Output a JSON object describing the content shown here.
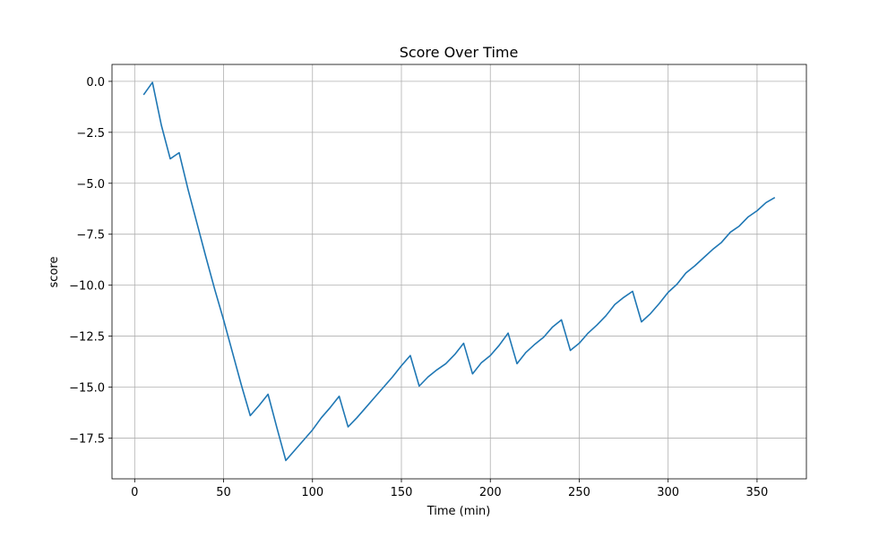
{
  "chart_data": {
    "type": "line",
    "title": "Score Over Time",
    "x_label": "Time (min)",
    "y_label": "score",
    "x": [
      5,
      10,
      15,
      20,
      25,
      30,
      35,
      40,
      45,
      50,
      55,
      60,
      65,
      70,
      75,
      80,
      85,
      90,
      95,
      100,
      105,
      110,
      115,
      120,
      125,
      130,
      135,
      140,
      145,
      150,
      155,
      160,
      165,
      170,
      175,
      180,
      185,
      190,
      195,
      200,
      205,
      210,
      215,
      220,
      225,
      230,
      235,
      240,
      245,
      250,
      255,
      260,
      265,
      270,
      275,
      280,
      285,
      290,
      295,
      300,
      305,
      310,
      315,
      320,
      325,
      330,
      335,
      340,
      345,
      350,
      355,
      360
    ],
    "series": [
      {
        "name": "score",
        "color": "#1f77b4",
        "values": [
          -0.66,
          -0.05,
          -2.15,
          -3.8,
          -3.5,
          -5.3,
          -6.95,
          -8.6,
          -10.2,
          -11.7,
          -13.3,
          -14.9,
          -16.4,
          -15.9,
          -15.35,
          -17.0,
          -18.6,
          -18.1,
          -17.6,
          -17.1,
          -16.5,
          -16.0,
          -15.45,
          -16.95,
          -16.5,
          -16.0,
          -15.5,
          -15.0,
          -14.5,
          -13.95,
          -13.45,
          -14.95,
          -14.5,
          -14.15,
          -13.85,
          -13.4,
          -12.85,
          -14.35,
          -13.8,
          -13.45,
          -12.95,
          -12.35,
          -13.85,
          -13.3,
          -12.9,
          -12.55,
          -12.05,
          -11.7,
          -13.2,
          -12.85,
          -12.35,
          -11.95,
          -11.5,
          -10.95,
          -10.6,
          -10.3,
          -11.8,
          -11.4,
          -10.9,
          -10.35,
          -9.95,
          -9.4,
          -9.05,
          -8.65,
          -8.25,
          -7.9,
          -7.4,
          -7.1,
          -6.65,
          -6.35,
          -5.95,
          -5.7
        ]
      }
    ],
    "xlim": [
      -12.75,
      377.75
    ],
    "xticks": [
      0,
      50,
      100,
      150,
      200,
      250,
      300,
      350
    ],
    "ylim": [
      -19.5,
      0.83
    ],
    "yticks": [
      {
        "value": 0,
        "label": "0.0"
      },
      {
        "value": -2.5,
        "label": "−2.5"
      },
      {
        "value": -5,
        "label": "−5.0"
      },
      {
        "value": -7.5,
        "label": "−7.5"
      },
      {
        "value": -10,
        "label": "−10.0"
      },
      {
        "value": -12.5,
        "label": "−12.5"
      },
      {
        "value": -15,
        "label": "−15.0"
      },
      {
        "value": -17.5,
        "label": "−17.5"
      }
    ],
    "grid": true
  }
}
